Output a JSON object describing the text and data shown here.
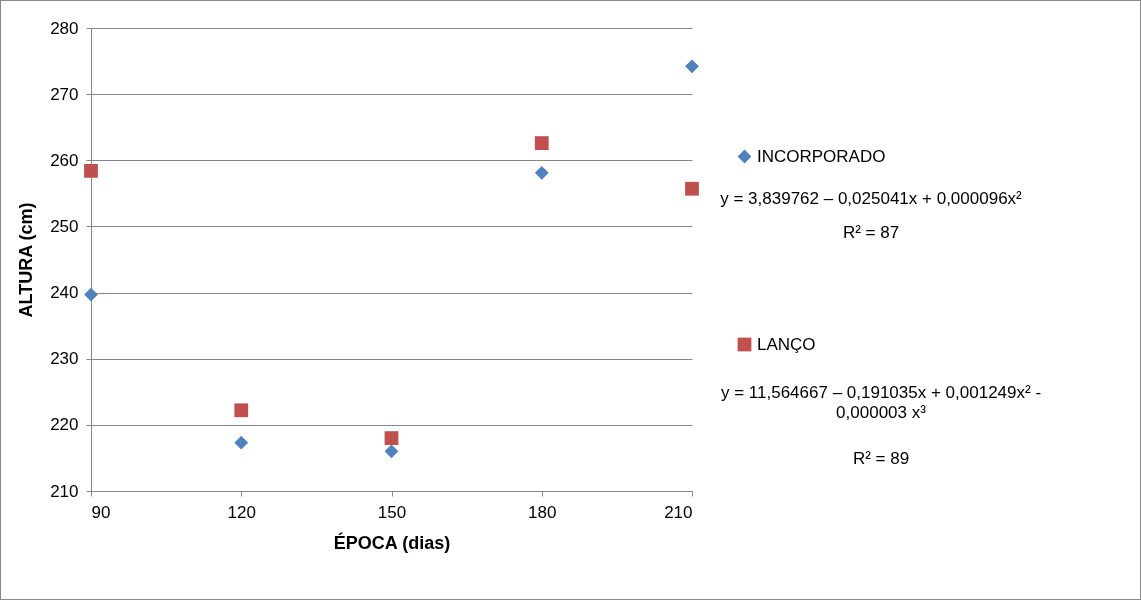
{
  "chart_data": {
    "type": "scatter",
    "xlabel": "ÉPOCA (dias)",
    "ylabel": "ALTURA (cm)",
    "x": [
      90,
      120,
      150,
      180,
      210
    ],
    "series": [
      {
        "name": "INCORPORADO",
        "color": "#4f81bd",
        "marker": "diamond",
        "values": [
          239.7,
          217.3,
          216.0,
          258.1,
          274.2
        ]
      },
      {
        "name": "LANÇO",
        "color": "#c0504d",
        "marker": "square",
        "values": [
          258.4,
          222.2,
          218.0,
          262.6,
          255.7
        ]
      }
    ],
    "xlim": [
      90,
      210
    ],
    "xticks": [
      90,
      120,
      150,
      180,
      210
    ],
    "ylim": [
      210,
      280
    ],
    "yticks": [
      210,
      220,
      230,
      240,
      250,
      260,
      270,
      280
    ],
    "grid": "y",
    "legend": "right",
    "annotations": [
      "y = 3,839762 – 0,025041x + 0,000096x²",
      "R² = 87",
      "y = 11,564667 – 0,191035x + 0,001249x² - 0,000003 x³",
      "R² = 89"
    ]
  }
}
